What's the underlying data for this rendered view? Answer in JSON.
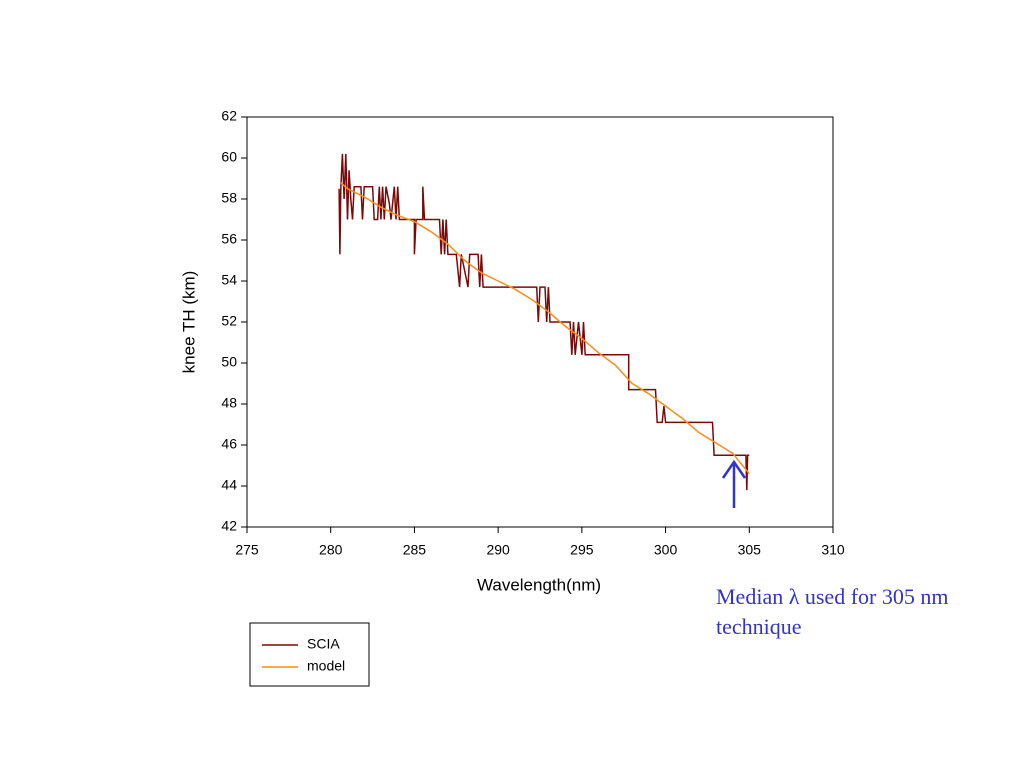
{
  "chart_data": {
    "type": "line",
    "xlabel": "Wavelength(nm)",
    "ylabel": "knee TH (km)",
    "xlim": [
      275,
      310
    ],
    "xticks": [
      275,
      280,
      285,
      290,
      295,
      300,
      305,
      310
    ],
    "ylim": [
      42,
      62
    ],
    "yticks": [
      42,
      44,
      46,
      48,
      50,
      52,
      54,
      56,
      58,
      60,
      62
    ],
    "grid": false,
    "legend": "below left",
    "annotation": "Median λ used for 305 nm technique",
    "series": [
      {
        "name": "SCIA",
        "color": "#7a0a0a",
        "x": [
          280.5,
          280.55,
          280.6,
          280.7,
          280.8,
          280.9,
          281.0,
          281.1,
          281.2,
          281.3,
          281.4,
          281.8,
          281.9,
          282.0,
          282.5,
          282.6,
          282.8,
          282.9,
          283.0,
          283.1,
          283.2,
          283.3,
          283.5,
          283.6,
          283.8,
          283.9,
          284.0,
          284.1,
          285.0,
          285.0,
          285.1,
          285.5,
          285.5,
          285.6,
          286.5,
          286.6,
          286.7,
          286.8,
          286.9,
          287.0,
          287.5,
          287.7,
          287.8,
          288.2,
          288.3,
          288.8,
          288.9,
          289.0,
          289.1,
          292.3,
          292.4,
          292.5,
          292.8,
          292.9,
          293.0,
          293.1,
          294.3,
          294.4,
          294.5,
          294.6,
          294.8,
          295.0,
          295.1,
          295.2,
          297.8,
          297.8,
          299.4,
          299.5,
          299.8,
          299.9,
          300.0,
          302.8,
          302.9,
          304.8,
          304.85,
          304.9,
          305.0
        ],
        "values": [
          58.5,
          55.3,
          58.5,
          60.2,
          58.0,
          60.2,
          57.0,
          59.4,
          58.0,
          57.0,
          58.6,
          58.6,
          57.0,
          58.6,
          58.6,
          57.0,
          57.0,
          58.6,
          57.0,
          58.6,
          57.0,
          58.6,
          57.8,
          57.0,
          58.6,
          57.0,
          58.6,
          57.0,
          57.0,
          55.3,
          57.0,
          57.0,
          58.6,
          57.0,
          57.0,
          55.3,
          57.0,
          55.3,
          57.0,
          55.3,
          55.3,
          53.7,
          55.3,
          53.7,
          55.3,
          55.3,
          53.7,
          55.3,
          53.7,
          53.7,
          52.0,
          53.7,
          53.7,
          52.0,
          53.7,
          52.0,
          52.0,
          50.4,
          52.0,
          50.4,
          52.0,
          50.4,
          52.0,
          50.4,
          50.4,
          48.7,
          48.7,
          47.1,
          47.1,
          47.9,
          47.1,
          47.1,
          45.5,
          45.5,
          43.8,
          45.5,
          45.5
        ]
      },
      {
        "name": "model",
        "color": "#ff8c1a",
        "x": [
          280.6,
          281,
          282,
          283,
          284,
          285,
          286,
          287,
          288,
          289,
          290,
          291,
          292,
          293,
          294,
          295,
          296,
          297,
          298,
          299,
          300,
          301,
          302,
          303,
          304,
          305
        ],
        "values": [
          58.8,
          58.5,
          58.1,
          57.6,
          57.2,
          56.9,
          56.4,
          55.8,
          55.0,
          54.4,
          54.0,
          53.6,
          53.1,
          52.5,
          51.8,
          51.2,
          50.5,
          49.9,
          49.0,
          48.5,
          47.9,
          47.3,
          46.6,
          46.1,
          45.6,
          44.6
        ]
      }
    ]
  }
}
